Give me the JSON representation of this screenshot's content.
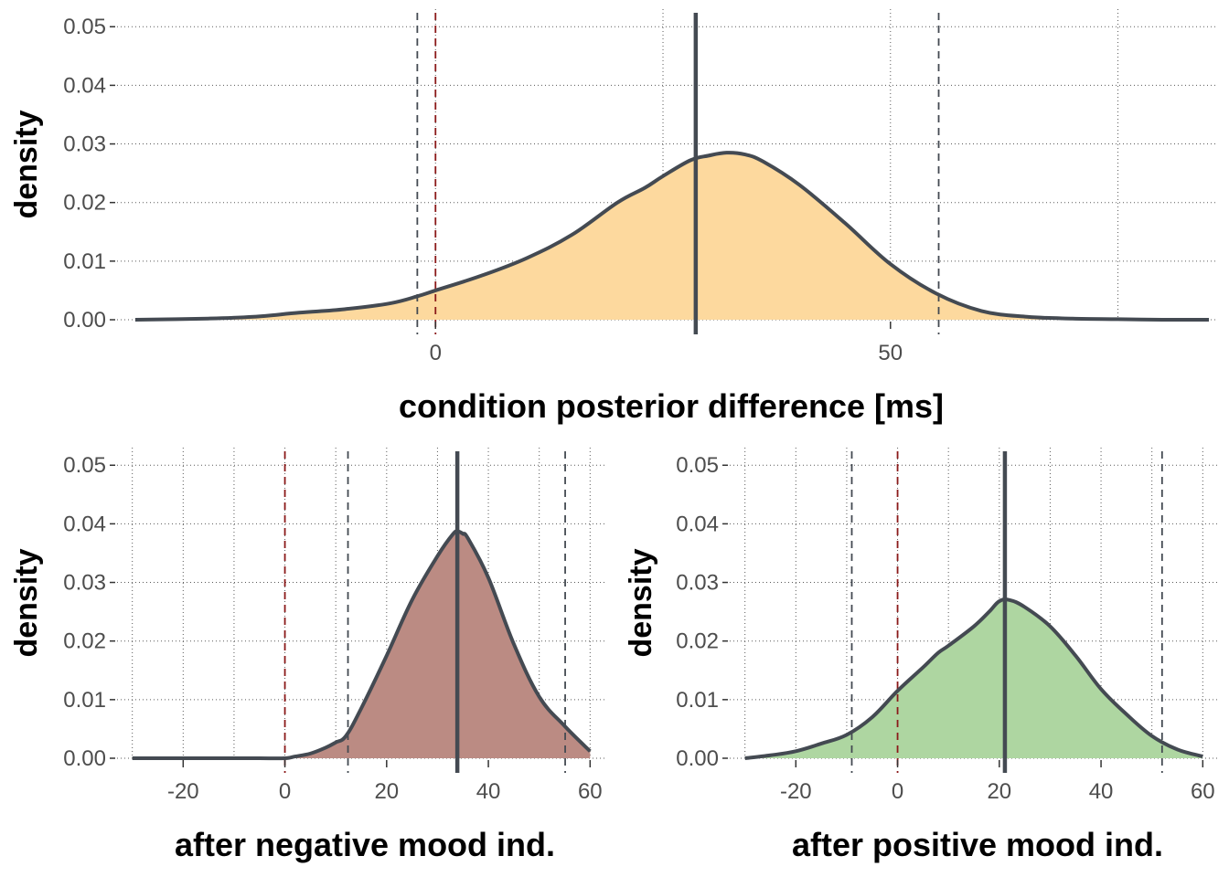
{
  "chart_data": [
    {
      "type": "area",
      "id": "top",
      "xlabel": "condition posterior difference [ms]",
      "ylabel": "density",
      "xlim": [
        -35,
        86
      ],
      "ylim": [
        0,
        0.053
      ],
      "x_ticks": [
        0,
        50
      ],
      "y_ticks": [
        0.0,
        0.01,
        0.02,
        0.03,
        0.04,
        0.05
      ],
      "y_tick_labels": [
        "0.00",
        "0.01",
        "0.02",
        "0.03",
        "0.04",
        "0.05"
      ],
      "x_minor_gridlines": [
        25,
        75
      ],
      "grid": "dotted",
      "fill_color": "#fdd99e",
      "line_color": "#444a52",
      "median": 28.6,
      "interval_lines": [
        -2,
        55.3
      ],
      "zero_line": 0,
      "zero_line_color": "#8b1a1a",
      "x": [
        -33,
        -25,
        -20,
        -15,
        -10,
        -5,
        -2,
        0,
        5,
        10,
        15,
        20,
        23,
        25,
        28,
        30,
        32,
        34,
        36,
        40,
        45,
        50,
        55,
        60,
        65,
        70,
        75,
        80,
        85
      ],
      "y": [
        0.0,
        0.0002,
        0.0005,
        0.0012,
        0.0018,
        0.0028,
        0.004,
        0.005,
        0.0075,
        0.0105,
        0.0145,
        0.02,
        0.0225,
        0.0245,
        0.0272,
        0.028,
        0.0285,
        0.0282,
        0.027,
        0.023,
        0.0165,
        0.0095,
        0.0045,
        0.0015,
        0.0005,
        0.0002,
        0.0001,
        0.0,
        0.0
      ]
    },
    {
      "type": "area",
      "id": "bottom-left",
      "xlabel": "after negative mood ind.",
      "ylabel": "density",
      "xlim": [
        -33,
        63
      ],
      "ylim": [
        0,
        0.053
      ],
      "x_ticks": [
        -20,
        0,
        20,
        40,
        60
      ],
      "y_ticks": [
        0.0,
        0.01,
        0.02,
        0.03,
        0.04,
        0.05
      ],
      "y_tick_labels": [
        "0.00",
        "0.01",
        "0.02",
        "0.03",
        "0.04",
        "0.05"
      ],
      "x_minor_gridlines": [
        -30,
        -10,
        10,
        30,
        50
      ],
      "grid": "dotted",
      "fill_color": "#bb8b83",
      "line_color": "#444a52",
      "median": 33.9,
      "interval_lines": [
        12.4,
        55.1
      ],
      "zero_line": 0,
      "zero_line_color": "#8b1a1a",
      "x": [
        -30,
        -20,
        -10,
        -5,
        0,
        2,
        5,
        8,
        10,
        12,
        15,
        20,
        25,
        30,
        33,
        34,
        35,
        36,
        40,
        45,
        50,
        55,
        60
      ],
      "y": [
        0.0,
        0.0,
        0.0,
        0.0,
        0.0,
        0.0003,
        0.0008,
        0.0018,
        0.0027,
        0.0038,
        0.0085,
        0.0175,
        0.027,
        0.0345,
        0.0382,
        0.0387,
        0.0383,
        0.0375,
        0.0308,
        0.0195,
        0.0105,
        0.0055,
        0.0012
      ]
    },
    {
      "type": "area",
      "id": "bottom-right",
      "xlabel": "after positive mood ind.",
      "ylabel": "density",
      "xlim": [
        -33,
        63
      ],
      "ylim": [
        0,
        0.053
      ],
      "x_ticks": [
        -20,
        0,
        20,
        40,
        60
      ],
      "y_ticks": [
        0.0,
        0.01,
        0.02,
        0.03,
        0.04,
        0.05
      ],
      "y_tick_labels": [
        "0.00",
        "0.01",
        "0.02",
        "0.03",
        "0.04",
        "0.05"
      ],
      "x_minor_gridlines": [
        -30,
        -10,
        10,
        30,
        50
      ],
      "grid": "dotted",
      "fill_color": "#aed6a1",
      "line_color": "#444a52",
      "median": 21.1,
      "interval_lines": [
        -9,
        52
      ],
      "zero_line": 0,
      "zero_line_color": "#8b1a1a",
      "x": [
        -30,
        -25,
        -20,
        -15,
        -10,
        -5,
        0,
        5,
        8,
        10,
        15,
        18,
        20,
        22,
        25,
        30,
        35,
        40,
        45,
        50,
        55,
        60
      ],
      "y": [
        0.0,
        0.0005,
        0.0012,
        0.0025,
        0.004,
        0.007,
        0.0115,
        0.0155,
        0.018,
        0.0192,
        0.0225,
        0.025,
        0.0268,
        0.027,
        0.0258,
        0.0225,
        0.0175,
        0.0118,
        0.0075,
        0.0038,
        0.0015,
        0.0003
      ]
    }
  ]
}
